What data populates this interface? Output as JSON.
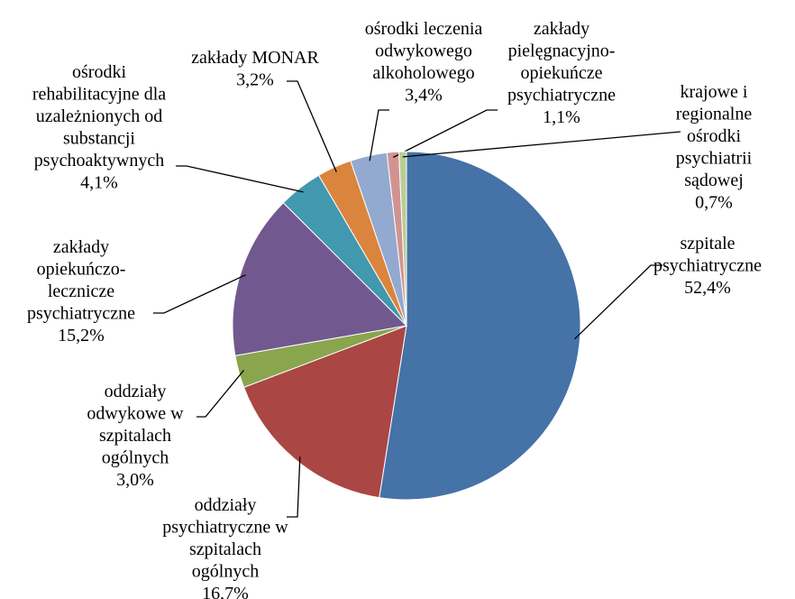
{
  "chart_data": {
    "type": "pie",
    "categories": [
      "szpitale\npsychiatryczne",
      "oddziały\npsychiatryczne w\nszpitalach\nogólnych",
      "oddziały\nodwykowe w\nszpitalach\nogólnych",
      "zakłady\nopiekuńczo-\nlecznicze\npsychiatryczne",
      "ośrodki\nrehabilitacyjne dla\nuzależnionych od\nsubstancji\npsychoaktywnych",
      "zakłady MONAR",
      "ośrodki leczenia\nodwykowego\nalkoholowego",
      "zakłady\npielęgnacyjno-\nopiekuńcze\npsychiatryczne",
      "krajowe i\nregionalne\nośrodki\npsychiatrii\nsądowej"
    ],
    "values": [
      52.4,
      16.7,
      3.0,
      15.2,
      4.1,
      3.2,
      3.4,
      1.1,
      0.7
    ],
    "value_labels": [
      "52,4%",
      "16,7%",
      "3,0%",
      "15,2%",
      "4,1%",
      "3,2%",
      "3,4%",
      "1,1%",
      "0,7%"
    ],
    "colors": [
      "#4572a7",
      "#aa4643",
      "#89a54e",
      "#71588f",
      "#4198af",
      "#db843d",
      "#93a9cf",
      "#d19392",
      "#b9cd96"
    ]
  }
}
